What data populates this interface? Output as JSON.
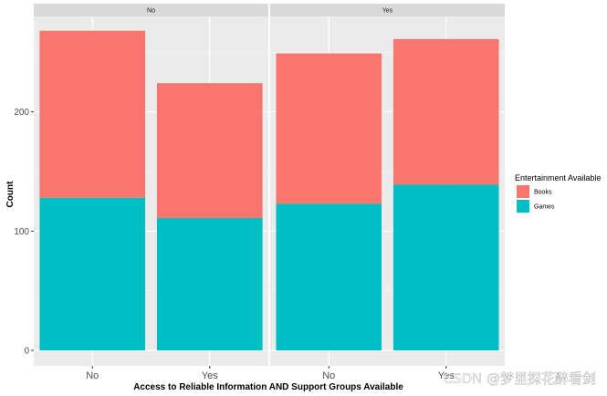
{
  "chart_data": {
    "type": "bar",
    "stacked": true,
    "facet_variable_values": [
      "No",
      "Yes"
    ],
    "categories": [
      "No",
      "Yes"
    ],
    "series": [
      {
        "name": "Books",
        "color": "#F8766D",
        "values": [
          [
            140,
            113
          ],
          [
            126,
            122
          ]
        ]
      },
      {
        "name": "Games",
        "color": "#00BFC4",
        "values": [
          [
            128,
            111
          ],
          [
            123,
            139
          ]
        ]
      }
    ],
    "xlabel": "Access to Reliable Information AND Support Groups Available",
    "ylabel": "Count",
    "yticks": [
      0,
      100,
      200
    ],
    "ylim": [
      -13,
      280
    ],
    "legend_title": "Entertainment Available",
    "legend_position": "right",
    "grid": true
  },
  "watermark": "CSDN @梦里探花醉看剑"
}
